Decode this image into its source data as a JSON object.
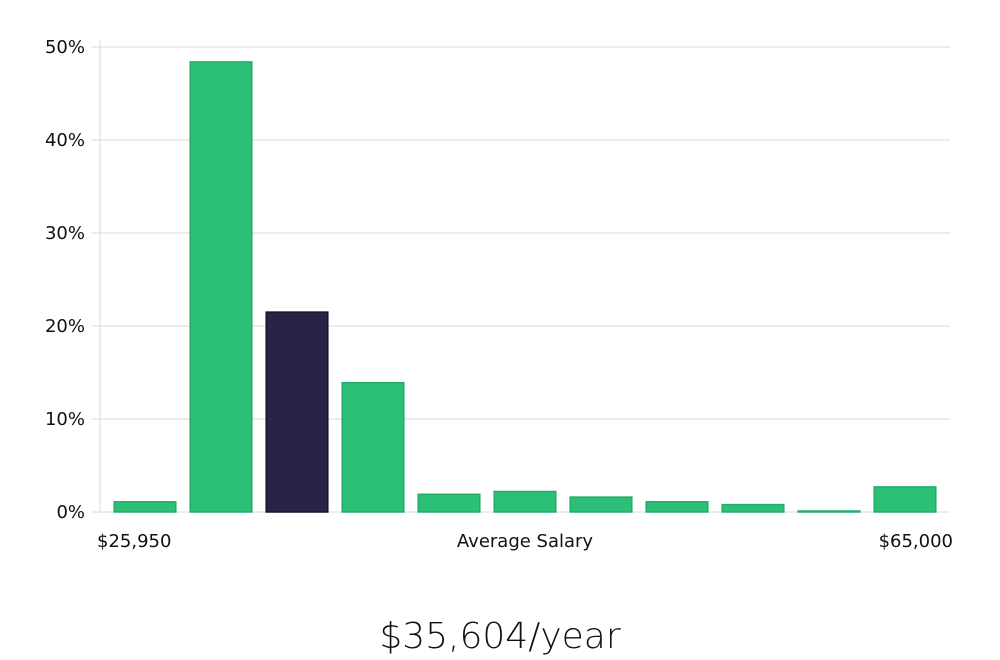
{
  "chart_data": {
    "type": "bar",
    "yticks": [
      "0%",
      "10%",
      "20%",
      "30%",
      "40%",
      "50%"
    ],
    "ylim": [
      0,
      50
    ],
    "values": [
      1.1,
      48.4,
      21.5,
      13.9,
      1.9,
      2.2,
      1.6,
      1.1,
      0.8,
      0.1,
      2.7
    ],
    "highlight_index": 2,
    "x_min_label": "$25,950",
    "x_max_label": "$65,000",
    "xlabel": "Average Salary",
    "grid": true,
    "colors": {
      "bar": "#2bbf77",
      "bar_stroke": "#22ad69",
      "highlight": "#272445",
      "grid": "#d9d9d9"
    }
  },
  "salary_text": "$35,604/year"
}
